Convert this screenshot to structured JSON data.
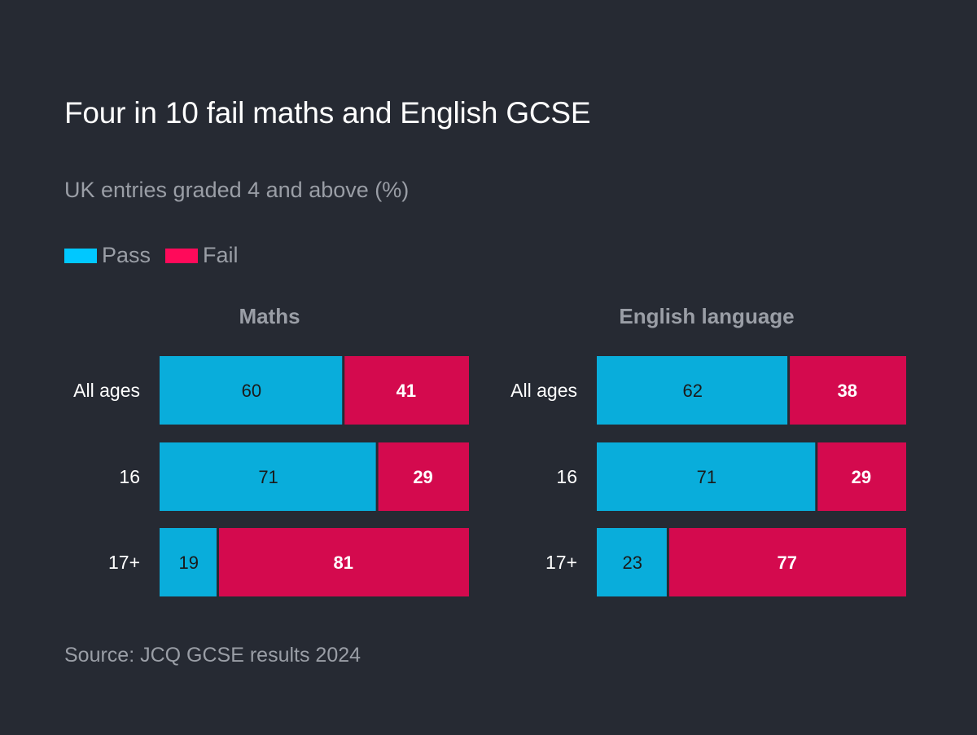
{
  "title": "Four in 10 fail maths and English GCSE",
  "subtitle": "UK entries graded 4 and above (%)",
  "legend": {
    "pass_label": "Pass",
    "fail_label": "Fail",
    "pass_color": "#00c8ff",
    "fail_color": "#ff0a5a"
  },
  "bar_colors": {
    "pass": "#09addb",
    "fail": "#d40a4e"
  },
  "source": "Source: JCQ GCSE results 2024",
  "chart_data": [
    {
      "type": "bar",
      "stacked": true,
      "orientation": "horizontal",
      "title": "Maths",
      "categories": [
        "All ages",
        "16",
        "17+"
      ],
      "series": [
        {
          "name": "Pass",
          "values": [
            60,
            71,
            19
          ]
        },
        {
          "name": "Fail",
          "values": [
            41,
            29,
            81
          ]
        }
      ],
      "xlim": [
        0,
        101
      ]
    },
    {
      "type": "bar",
      "stacked": true,
      "orientation": "horizontal",
      "title": "English language",
      "categories": [
        "All ages",
        "16",
        "17+"
      ],
      "series": [
        {
          "name": "Pass",
          "values": [
            62,
            71,
            23
          ]
        },
        {
          "name": "Fail",
          "values": [
            38,
            29,
            77
          ]
        }
      ],
      "xlim": [
        0,
        100
      ]
    }
  ]
}
